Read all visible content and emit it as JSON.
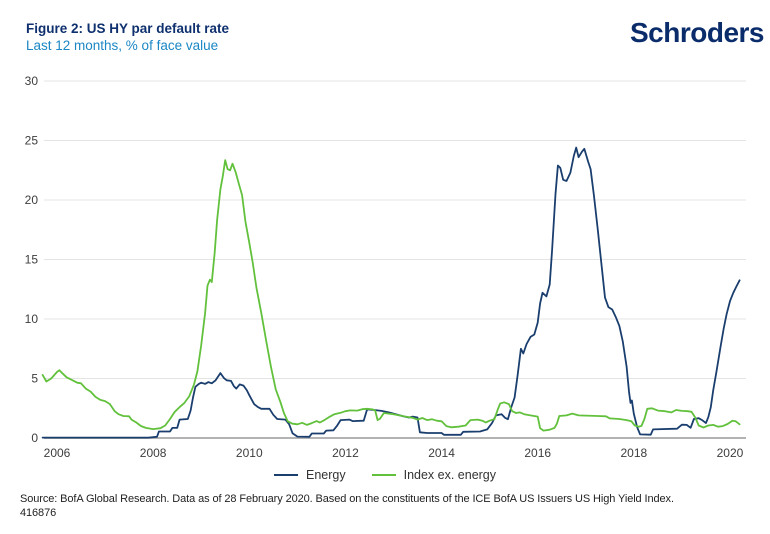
{
  "header": {
    "title": "Figure 2: US HY par default rate",
    "subtitle": "Last 12 months, % of face value",
    "logo": "Schroders"
  },
  "legend": [
    {
      "label": "Energy",
      "color": "#1a3e6e"
    },
    {
      "label": "Index ex. energy",
      "color": "#62c13c"
    }
  ],
  "source": {
    "line1": "Source: BofA Global Research. Data as of 28 February 2020. Based on the constituents of the ICE BofA US Issuers US High Yield Index.",
    "line2": "416876"
  },
  "colors": {
    "title_navy": "#0f306e",
    "subtitle_blue": "#1b87c4",
    "logo_navy": "#0a2c6b",
    "energy_line": "#1a3e6e",
    "index_line": "#62c13c",
    "gridline": "#e4e4e4",
    "zero_axis": "#b3b3b3",
    "tick_text": "#3d3d3d"
  },
  "chart_data": {
    "type": "line",
    "title": "Figure 2: US HY par default rate",
    "subtitle": "Last 12 months, % of face value",
    "xlabel": "",
    "ylabel": "% of face value",
    "grid": true,
    "legend_position": "bottom",
    "x_axis": {
      "ticks": [
        2006,
        2008,
        2010,
        2012,
        2014,
        2016,
        2018,
        2020
      ],
      "range": [
        2005.7,
        2020.3
      ]
    },
    "y_axis": {
      "ticks": [
        0,
        5,
        10,
        15,
        20,
        25,
        30
      ],
      "range": [
        0,
        30
      ]
    },
    "series": [
      {
        "name": "Energy",
        "slug": "energy-line",
        "color": "#1a3e6e",
        "points": [
          [
            2005.7,
            0.03
          ],
          [
            2007.9,
            0.03
          ],
          [
            2008.08,
            0.1
          ],
          [
            2008.12,
            0.55
          ],
          [
            2008.35,
            0.55
          ],
          [
            2008.4,
            0.85
          ],
          [
            2008.5,
            0.85
          ],
          [
            2008.55,
            1.55
          ],
          [
            2008.72,
            1.6
          ],
          [
            2008.78,
            2.3
          ],
          [
            2008.83,
            3.4
          ],
          [
            2008.88,
            4.3
          ],
          [
            2008.95,
            4.55
          ],
          [
            2009.0,
            4.65
          ],
          [
            2009.08,
            4.55
          ],
          [
            2009.15,
            4.7
          ],
          [
            2009.22,
            4.6
          ],
          [
            2009.3,
            4.85
          ],
          [
            2009.4,
            5.45
          ],
          [
            2009.47,
            5.05
          ],
          [
            2009.53,
            4.85
          ],
          [
            2009.62,
            4.8
          ],
          [
            2009.68,
            4.35
          ],
          [
            2009.73,
            4.15
          ],
          [
            2009.8,
            4.5
          ],
          [
            2009.88,
            4.4
          ],
          [
            2009.95,
            4.0
          ],
          [
            2010.0,
            3.6
          ],
          [
            2010.1,
            2.85
          ],
          [
            2010.18,
            2.6
          ],
          [
            2010.25,
            2.45
          ],
          [
            2010.42,
            2.45
          ],
          [
            2010.5,
            1.95
          ],
          [
            2010.58,
            1.6
          ],
          [
            2010.75,
            1.55
          ],
          [
            2010.83,
            1.15
          ],
          [
            2010.9,
            0.4
          ],
          [
            2011.0,
            0.12
          ],
          [
            2011.25,
            0.1
          ],
          [
            2011.3,
            0.38
          ],
          [
            2011.55,
            0.38
          ],
          [
            2011.6,
            0.62
          ],
          [
            2011.75,
            0.65
          ],
          [
            2011.82,
            1.0
          ],
          [
            2011.9,
            1.5
          ],
          [
            2012.08,
            1.55
          ],
          [
            2012.15,
            1.42
          ],
          [
            2012.38,
            1.45
          ],
          [
            2012.45,
            2.4
          ],
          [
            2012.6,
            2.35
          ],
          [
            2012.75,
            2.28
          ],
          [
            2012.9,
            2.15
          ],
          [
            2013.0,
            2.05
          ],
          [
            2013.2,
            1.82
          ],
          [
            2013.32,
            1.72
          ],
          [
            2013.4,
            1.8
          ],
          [
            2013.5,
            1.72
          ],
          [
            2013.55,
            0.48
          ],
          [
            2013.7,
            0.42
          ],
          [
            2014.0,
            0.42
          ],
          [
            2014.05,
            0.27
          ],
          [
            2014.4,
            0.27
          ],
          [
            2014.45,
            0.52
          ],
          [
            2014.8,
            0.55
          ],
          [
            2014.95,
            0.72
          ],
          [
            2015.05,
            1.25
          ],
          [
            2015.13,
            1.9
          ],
          [
            2015.25,
            2.0
          ],
          [
            2015.32,
            1.7
          ],
          [
            2015.38,
            1.58
          ],
          [
            2015.45,
            2.6
          ],
          [
            2015.52,
            3.4
          ],
          [
            2015.58,
            5.2
          ],
          [
            2015.65,
            7.5
          ],
          [
            2015.7,
            7.1
          ],
          [
            2015.77,
            7.9
          ],
          [
            2015.85,
            8.5
          ],
          [
            2015.93,
            8.7
          ],
          [
            2016.0,
            9.7
          ],
          [
            2016.05,
            11.3
          ],
          [
            2016.1,
            12.2
          ],
          [
            2016.18,
            11.9
          ],
          [
            2016.25,
            12.9
          ],
          [
            2016.3,
            15.8
          ],
          [
            2016.37,
            20.5
          ],
          [
            2016.42,
            22.9
          ],
          [
            2016.47,
            22.7
          ],
          [
            2016.53,
            21.7
          ],
          [
            2016.6,
            21.6
          ],
          [
            2016.68,
            22.3
          ],
          [
            2016.75,
            23.7
          ],
          [
            2016.8,
            24.4
          ],
          [
            2016.85,
            23.6
          ],
          [
            2016.92,
            24.05
          ],
          [
            2016.97,
            24.3
          ],
          [
            2017.05,
            23.2
          ],
          [
            2017.1,
            22.6
          ],
          [
            2017.17,
            20.4
          ],
          [
            2017.25,
            17.5
          ],
          [
            2017.32,
            14.8
          ],
          [
            2017.4,
            11.8
          ],
          [
            2017.47,
            11.0
          ],
          [
            2017.55,
            10.8
          ],
          [
            2017.63,
            10.1
          ],
          [
            2017.7,
            9.4
          ],
          [
            2017.77,
            8.1
          ],
          [
            2017.85,
            6.0
          ],
          [
            2017.9,
            3.9
          ],
          [
            2017.93,
            2.95
          ],
          [
            2017.96,
            3.15
          ],
          [
            2018.0,
            2.05
          ],
          [
            2018.07,
            0.9
          ],
          [
            2018.13,
            0.3
          ],
          [
            2018.35,
            0.28
          ],
          [
            2018.4,
            0.72
          ],
          [
            2018.9,
            0.78
          ],
          [
            2019.0,
            1.12
          ],
          [
            2019.1,
            1.1
          ],
          [
            2019.18,
            0.86
          ],
          [
            2019.25,
            1.6
          ],
          [
            2019.35,
            1.66
          ],
          [
            2019.42,
            1.5
          ],
          [
            2019.5,
            1.25
          ],
          [
            2019.55,
            1.75
          ],
          [
            2019.6,
            2.6
          ],
          [
            2019.65,
            4.0
          ],
          [
            2019.72,
            5.6
          ],
          [
            2019.8,
            7.6
          ],
          [
            2019.87,
            9.2
          ],
          [
            2019.93,
            10.4
          ],
          [
            2020.0,
            11.5
          ],
          [
            2020.07,
            12.2
          ],
          [
            2020.13,
            12.7
          ],
          [
            2020.2,
            13.25
          ]
        ]
      },
      {
        "name": "Index ex. energy",
        "slug": "index-ex-energy-line",
        "color": "#62c13c",
        "points": [
          [
            2005.7,
            5.3
          ],
          [
            2005.78,
            4.75
          ],
          [
            2005.88,
            5.0
          ],
          [
            2006.0,
            5.55
          ],
          [
            2006.05,
            5.7
          ],
          [
            2006.12,
            5.4
          ],
          [
            2006.2,
            5.1
          ],
          [
            2006.3,
            4.9
          ],
          [
            2006.42,
            4.65
          ],
          [
            2006.5,
            4.6
          ],
          [
            2006.6,
            4.15
          ],
          [
            2006.7,
            3.9
          ],
          [
            2006.8,
            3.45
          ],
          [
            2006.9,
            3.2
          ],
          [
            2007.0,
            3.1
          ],
          [
            2007.1,
            2.85
          ],
          [
            2007.2,
            2.25
          ],
          [
            2007.28,
            2.0
          ],
          [
            2007.38,
            1.85
          ],
          [
            2007.5,
            1.82
          ],
          [
            2007.55,
            1.55
          ],
          [
            2007.65,
            1.3
          ],
          [
            2007.75,
            1.0
          ],
          [
            2007.85,
            0.85
          ],
          [
            2008.0,
            0.75
          ],
          [
            2008.15,
            0.82
          ],
          [
            2008.25,
            1.05
          ],
          [
            2008.35,
            1.6
          ],
          [
            2008.45,
            2.2
          ],
          [
            2008.55,
            2.6
          ],
          [
            2008.65,
            2.95
          ],
          [
            2008.75,
            3.5
          ],
          [
            2008.85,
            4.5
          ],
          [
            2008.92,
            5.6
          ],
          [
            2009.0,
            7.8
          ],
          [
            2009.08,
            10.5
          ],
          [
            2009.13,
            12.8
          ],
          [
            2009.18,
            13.3
          ],
          [
            2009.22,
            13.1
          ],
          [
            2009.28,
            15.6
          ],
          [
            2009.33,
            18.3
          ],
          [
            2009.4,
            20.9
          ],
          [
            2009.45,
            22.0
          ],
          [
            2009.5,
            23.35
          ],
          [
            2009.55,
            22.6
          ],
          [
            2009.6,
            22.5
          ],
          [
            2009.65,
            23.05
          ],
          [
            2009.72,
            22.3
          ],
          [
            2009.78,
            21.4
          ],
          [
            2009.85,
            20.4
          ],
          [
            2009.92,
            18.2
          ],
          [
            2010.0,
            16.4
          ],
          [
            2010.07,
            14.8
          ],
          [
            2010.15,
            12.6
          ],
          [
            2010.25,
            10.5
          ],
          [
            2010.35,
            8.2
          ],
          [
            2010.45,
            6.0
          ],
          [
            2010.55,
            4.1
          ],
          [
            2010.65,
            3.0
          ],
          [
            2010.72,
            2.1
          ],
          [
            2010.8,
            1.4
          ],
          [
            2010.9,
            1.2
          ],
          [
            2011.0,
            1.15
          ],
          [
            2011.1,
            1.28
          ],
          [
            2011.2,
            1.1
          ],
          [
            2011.3,
            1.25
          ],
          [
            2011.4,
            1.42
          ],
          [
            2011.47,
            1.3
          ],
          [
            2011.57,
            1.52
          ],
          [
            2011.67,
            1.78
          ],
          [
            2011.77,
            2.0
          ],
          [
            2011.9,
            2.12
          ],
          [
            2012.0,
            2.25
          ],
          [
            2012.1,
            2.32
          ],
          [
            2012.25,
            2.3
          ],
          [
            2012.35,
            2.42
          ],
          [
            2012.45,
            2.45
          ],
          [
            2012.57,
            2.4
          ],
          [
            2012.62,
            2.3
          ],
          [
            2012.67,
            1.5
          ],
          [
            2012.72,
            1.62
          ],
          [
            2012.8,
            2.1
          ],
          [
            2012.9,
            2.05
          ],
          [
            2013.0,
            2.0
          ],
          [
            2013.12,
            1.9
          ],
          [
            2013.25,
            1.8
          ],
          [
            2013.4,
            1.7
          ],
          [
            2013.5,
            1.55
          ],
          [
            2013.6,
            1.68
          ],
          [
            2013.7,
            1.5
          ],
          [
            2013.8,
            1.58
          ],
          [
            2013.9,
            1.45
          ],
          [
            2014.0,
            1.4
          ],
          [
            2014.1,
            1.0
          ],
          [
            2014.2,
            0.9
          ],
          [
            2014.35,
            0.95
          ],
          [
            2014.5,
            1.05
          ],
          [
            2014.6,
            1.5
          ],
          [
            2014.75,
            1.55
          ],
          [
            2014.85,
            1.45
          ],
          [
            2014.92,
            1.3
          ],
          [
            2015.0,
            1.45
          ],
          [
            2015.1,
            1.58
          ],
          [
            2015.17,
            2.4
          ],
          [
            2015.22,
            2.9
          ],
          [
            2015.3,
            3.0
          ],
          [
            2015.4,
            2.85
          ],
          [
            2015.47,
            2.25
          ],
          [
            2015.55,
            2.1
          ],
          [
            2015.63,
            2.15
          ],
          [
            2015.72,
            2.0
          ],
          [
            2015.85,
            1.9
          ],
          [
            2016.0,
            1.8
          ],
          [
            2016.05,
            0.82
          ],
          [
            2016.12,
            0.62
          ],
          [
            2016.25,
            0.7
          ],
          [
            2016.35,
            0.85
          ],
          [
            2016.4,
            1.2
          ],
          [
            2016.45,
            1.85
          ],
          [
            2016.6,
            1.9
          ],
          [
            2016.72,
            2.05
          ],
          [
            2016.85,
            1.9
          ],
          [
            2017.0,
            1.88
          ],
          [
            2017.25,
            1.85
          ],
          [
            2017.42,
            1.82
          ],
          [
            2017.5,
            1.65
          ],
          [
            2017.7,
            1.6
          ],
          [
            2017.85,
            1.5
          ],
          [
            2017.95,
            1.4
          ],
          [
            2018.02,
            1.05
          ],
          [
            2018.1,
            0.95
          ],
          [
            2018.16,
            1.02
          ],
          [
            2018.22,
            1.6
          ],
          [
            2018.28,
            2.45
          ],
          [
            2018.38,
            2.5
          ],
          [
            2018.5,
            2.3
          ],
          [
            2018.65,
            2.25
          ],
          [
            2018.78,
            2.15
          ],
          [
            2018.88,
            2.35
          ],
          [
            2019.0,
            2.28
          ],
          [
            2019.12,
            2.25
          ],
          [
            2019.2,
            2.2
          ],
          [
            2019.28,
            1.7
          ],
          [
            2019.35,
            1.05
          ],
          [
            2019.45,
            0.88
          ],
          [
            2019.55,
            1.05
          ],
          [
            2019.65,
            1.1
          ],
          [
            2019.75,
            0.95
          ],
          [
            2019.85,
            1.0
          ],
          [
            2019.95,
            1.18
          ],
          [
            2020.05,
            1.45
          ],
          [
            2020.12,
            1.4
          ],
          [
            2020.2,
            1.15
          ]
        ]
      }
    ]
  }
}
